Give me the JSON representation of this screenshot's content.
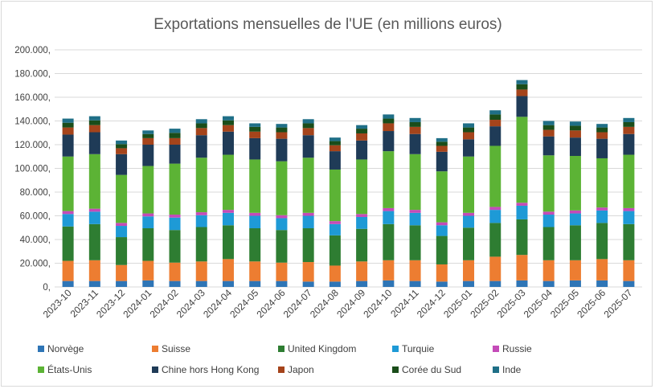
{
  "chart_data": {
    "type": "bar",
    "stacked": true,
    "title": "Exportations mensuelles de l'UE (en millions euros)",
    "xlabel": "",
    "ylabel": "",
    "ylim": [
      0,
      200000
    ],
    "ytick_values": [
      0,
      20000,
      40000,
      60000,
      80000,
      100000,
      120000,
      140000,
      160000,
      180000,
      200000
    ],
    "ytick_labels": [
      "0,",
      "20.000,",
      "40.000,",
      "60.000,",
      "80.000,",
      "100.000,",
      "120.000,",
      "140.000,",
      "160.000,",
      "180.000,",
      "200.000,"
    ],
    "grid": true,
    "legend_position": "bottom",
    "categories": [
      "2023-10",
      "2023-11",
      "2023-12",
      "2024-01",
      "2024-02",
      "2024-03",
      "2024-04",
      "2024-05",
      "2024-06",
      "2024-07",
      "2024-08",
      "2024-09",
      "2024-10",
      "2024-11",
      "2024-12",
      "2025-01",
      "2025-02",
      "2025-03",
      "2025-04",
      "2025-05",
      "2025-06",
      "2025-07"
    ],
    "series": [
      {
        "name": "Norvège",
        "color": "#2e75b6",
        "values": [
          5000,
          5000,
          5000,
          5500,
          5000,
          5000,
          5000,
          5000,
          5000,
          4500,
          4500,
          5000,
          5500,
          5000,
          4500,
          5000,
          5000,
          5500,
          5000,
          5500,
          5500,
          5000
        ]
      },
      {
        "name": "Suisse",
        "color": "#ed7d31",
        "values": [
          17000,
          17500,
          13500,
          16500,
          15500,
          16500,
          18500,
          16500,
          15500,
          16500,
          13500,
          16500,
          17000,
          17500,
          14500,
          17500,
          20500,
          21500,
          17500,
          17000,
          18000,
          17500
        ]
      },
      {
        "name": "United Kingdom",
        "color": "#2e7d32",
        "values": [
          29000,
          30500,
          23500,
          27500,
          27500,
          29000,
          28500,
          28000,
          27500,
          28500,
          25500,
          27500,
          30500,
          29500,
          24000,
          27500,
          28500,
          30000,
          28000,
          29500,
          30500,
          30500
        ]
      },
      {
        "name": "Turquie",
        "color": "#1e9ad6",
        "values": [
          10500,
          10500,
          9500,
          10000,
          10500,
          10000,
          10500,
          10500,
          10000,
          10500,
          9500,
          10000,
          11000,
          10500,
          9000,
          10000,
          11000,
          11500,
          10500,
          10000,
          10500,
          11000
        ]
      },
      {
        "name": "Russie",
        "color": "#c44bb8",
        "values": [
          2500,
          2500,
          2500,
          2500,
          2500,
          2500,
          2500,
          2500,
          2500,
          2500,
          2500,
          2500,
          2500,
          2500,
          2500,
          2500,
          2500,
          2500,
          2500,
          2500,
          2500,
          2500
        ]
      },
      {
        "name": "États-Unis",
        "color": "#5cb335",
        "values": [
          46000,
          46000,
          40500,
          40000,
          43000,
          46000,
          46500,
          45000,
          45500,
          46500,
          43500,
          46000,
          48000,
          47000,
          43000,
          47500,
          51500,
          72500,
          47500,
          46000,
          41500,
          45000
        ]
      },
      {
        "name": "Chine hors Hong Kong",
        "color": "#1f3b57",
        "values": [
          18500,
          18500,
          17500,
          18000,
          16000,
          19000,
          19500,
          18000,
          19000,
          19000,
          15500,
          16000,
          17000,
          17000,
          16500,
          14500,
          16500,
          17500,
          16000,
          15500,
          16500,
          17500
        ]
      },
      {
        "name": "Japon",
        "color": "#a5441b",
        "values": [
          6000,
          6000,
          5000,
          5500,
          5500,
          6000,
          5500,
          5500,
          5500,
          6000,
          5000,
          6000,
          6500,
          6000,
          5000,
          6000,
          5500,
          5500,
          5500,
          6000,
          5500,
          6000
        ]
      },
      {
        "name": "Corée du Sud",
        "color": "#1a4d1a",
        "values": [
          4000,
          4000,
          3500,
          3500,
          4500,
          4000,
          4000,
          4000,
          4000,
          4000,
          3500,
          4000,
          4000,
          4000,
          3500,
          4000,
          4500,
          4500,
          4000,
          4000,
          4000,
          4000
        ]
      },
      {
        "name": "Inde",
        "color": "#1f6f87",
        "values": [
          3500,
          3500,
          3000,
          3000,
          3500,
          3500,
          3500,
          3000,
          3000,
          3500,
          3000,
          3000,
          3500,
          3500,
          3000,
          3500,
          3500,
          3500,
          3500,
          3500,
          3000,
          3500
        ]
      }
    ]
  }
}
